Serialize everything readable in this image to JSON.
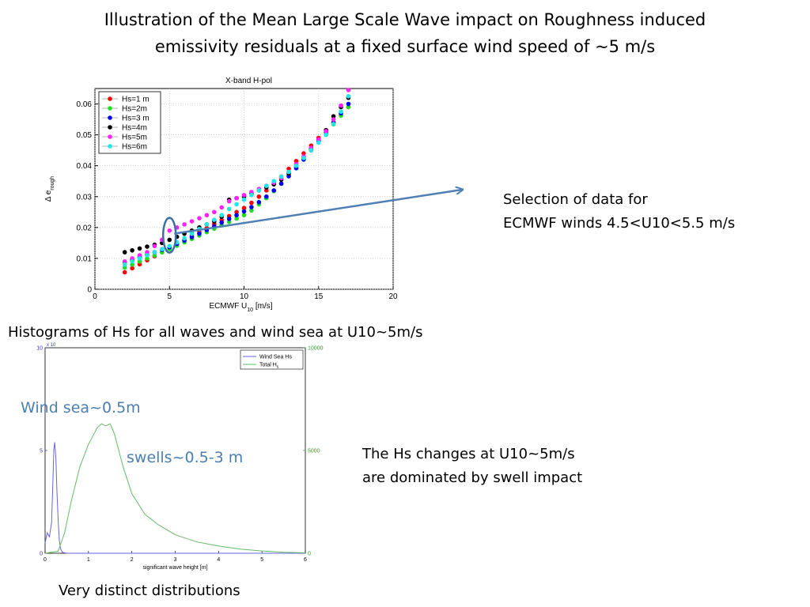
{
  "slide": {
    "title_line1": "Illustration of the Mean Large Scale Wave impact on Roughness induced",
    "title_line2": "emissivity residuals at a fixed surface wind speed of ~5 m/s",
    "selection_line1": "Selection of data for",
    "selection_line2": "ECMWF winds 4.5<U10<5.5 m/s",
    "histogram_caption": "Histograms of Hs for all waves and wind sea at U10~5m/s",
    "hs_note_line1": "The Hs changes at U10~5m/s",
    "hs_note_line2": "are dominated by swell impact",
    "bottom_caption": "Very distinct distributions",
    "wind_sea_label": "Wind sea~0.5m",
    "swells_label": "swells~0.5-3 m",
    "arrow_color": "#4f7fb5"
  },
  "chart_data": [
    {
      "type": "scatter",
      "title": "X-band H-pol",
      "xlabel": "ECMWF U",
      "xlabel_sub": "10",
      "xlabel_unit": " [m/s]",
      "ylabel": "Δ e",
      "ylabel_sub": "rough",
      "xlim": [
        0,
        20
      ],
      "ylim": [
        0,
        0.065
      ],
      "xticks": [
        0,
        5,
        10,
        15,
        20
      ],
      "yticks": [
        0,
        0.01,
        0.02,
        0.03,
        0.04,
        0.05,
        0.06
      ],
      "ytick_labels": [
        "0",
        "0.01",
        "0.02",
        "0.03",
        "0.04",
        "0.05",
        "0.06"
      ],
      "grid": true,
      "legend_position": "top-left",
      "x": [
        2,
        2.5,
        3,
        3.5,
        4,
        4.5,
        5,
        5.5,
        6,
        6.5,
        7,
        7.5,
        8,
        8.5,
        9,
        9.5,
        10,
        10.5,
        11,
        11.5,
        12,
        12.5,
        13,
        13.5,
        14,
        14.5,
        15,
        15.5,
        16,
        16.5,
        17
      ],
      "series": [
        {
          "name": "Hs=1 m",
          "color": "#ff0000",
          "values": [
            0.0055,
            0.0068,
            0.0081,
            0.0094,
            0.0107,
            0.012,
            0.0133,
            0.0146,
            0.0159,
            0.0172,
            0.0185,
            0.0198,
            0.0211,
            0.0224,
            0.0237,
            0.025,
            0.0263,
            0.028,
            0.03,
            0.032,
            0.034,
            0.0365,
            0.039,
            0.0415,
            0.044,
            0.0465,
            0.049,
            0.0515,
            0.054,
            0.0565,
            0.059
          ]
        },
        {
          "name": "Hs=2m",
          "color": "#22dd22",
          "values": [
            0.007,
            0.008,
            0.009,
            0.01,
            0.011,
            0.012,
            0.013,
            0.0141,
            0.0152,
            0.0163,
            0.0174,
            0.0185,
            0.0196,
            0.0207,
            0.0218,
            0.0229,
            0.024,
            0.0255,
            0.0275,
            0.0295,
            0.0318,
            0.0342,
            0.0368,
            0.0395,
            0.0422,
            0.045,
            0.0478,
            0.0506,
            0.0534,
            0.0562,
            0.059
          ]
        },
        {
          "name": "Hs=3 m",
          "color": "#0000ee",
          "values": [
            0.0088,
            0.0096,
            0.0104,
            0.0112,
            0.012,
            0.0128,
            0.0136,
            0.0147,
            0.0158,
            0.0169,
            0.018,
            0.0192,
            0.0204,
            0.0216,
            0.0228,
            0.024,
            0.0252,
            0.0266,
            0.0282,
            0.03,
            0.032,
            0.0342,
            0.0366,
            0.0392,
            0.042,
            0.045,
            0.048,
            0.051,
            0.054,
            0.057,
            0.06
          ]
        },
        {
          "name": "Hs=4m",
          "color": "#000000",
          "values": [
            0.012,
            0.0126,
            0.0132,
            0.0138,
            0.0144,
            0.015,
            0.016,
            0.017,
            0.018,
            0.019,
            0.02,
            0.021,
            0.022,
            0.0235,
            0.029,
            0.0295,
            0.03,
            0.031,
            0.032,
            0.033,
            0.034,
            0.0355,
            0.0375,
            0.04,
            0.0425,
            0.0455,
            0.0485,
            0.0515,
            0.056,
            0.059,
            0.062
          ]
        },
        {
          "name": "Hs=5m",
          "color": "#ff22ff",
          "values": [
            0.009,
            0.01,
            0.011,
            0.012,
            0.014,
            0.016,
            0.019,
            0.02,
            0.021,
            0.022,
            0.023,
            0.024,
            0.025,
            0.0265,
            0.0285,
            0.0295,
            0.0305,
            0.0315,
            0.0325,
            0.0335,
            0.0345,
            0.036,
            0.038,
            0.0405,
            0.043,
            0.0458,
            0.0485,
            0.0512,
            0.055,
            0.0595,
            0.0645
          ]
        },
        {
          "name": "Hs=6m",
          "color": "#22e6e6",
          "values": [
            0.008,
            0.009,
            0.01,
            0.011,
            0.012,
            0.013,
            0.014,
            0.0152,
            0.0165,
            0.018,
            0.0195,
            0.021,
            0.0225,
            0.024,
            0.026,
            0.0275,
            0.029,
            0.0305,
            0.032,
            0.0335,
            0.035,
            0.0365,
            0.038,
            0.04,
            0.0425,
            0.045,
            0.0475,
            0.05,
            0.0535,
            0.0575,
            0.0625
          ]
        }
      ],
      "highlight_range_x": [
        4.5,
        5.5
      ]
    },
    {
      "type": "line",
      "xlabel": "significant wave height [m]",
      "xlim": [
        0,
        6
      ],
      "xticks": [
        0,
        1,
        2,
        3,
        4,
        5,
        6
      ],
      "ylim_left": [
        0,
        10
      ],
      "yticks_left": [
        0,
        5,
        10
      ],
      "left_axis_multiplier": "x 10",
      "left_axis_color": "#3333cc",
      "ylim_right": [
        0,
        10000
      ],
      "yticks_right": [
        0,
        5000,
        10000
      ],
      "right_axis_color": "#22aa22",
      "grid": false,
      "legend_position": "top-right",
      "series": [
        {
          "name": "Wind Sea Hs",
          "color": "#6666dd",
          "axis": "left",
          "x": [
            0,
            0.05,
            0.1,
            0.15,
            0.18,
            0.2,
            0.22,
            0.25,
            0.27,
            0.3,
            0.33,
            0.36,
            0.4,
            0.45,
            0.5,
            0.6,
            1,
            6
          ],
          "values": [
            0.5,
            1.0,
            0.8,
            1.5,
            3.5,
            5.0,
            5.4,
            4.6,
            3.2,
            1.6,
            0.6,
            0.2,
            0.05,
            0.02,
            0,
            0,
            0,
            0
          ]
        },
        {
          "name": "Total H",
          "name_sub": "s",
          "color": "#66bb66",
          "axis": "right",
          "x": [
            0,
            0.3,
            0.45,
            0.6,
            0.8,
            1.0,
            1.2,
            1.3,
            1.4,
            1.5,
            1.6,
            1.8,
            2.0,
            2.3,
            2.6,
            3.0,
            3.5,
            4.0,
            4.5,
            5.0,
            5.5,
            6.0
          ],
          "values": [
            0,
            100,
            1000,
            2500,
            4200,
            5300,
            6100,
            6300,
            6200,
            6300,
            5800,
            4200,
            2900,
            1900,
            1400,
            900,
            550,
            350,
            200,
            110,
            50,
            20
          ]
        }
      ]
    }
  ]
}
